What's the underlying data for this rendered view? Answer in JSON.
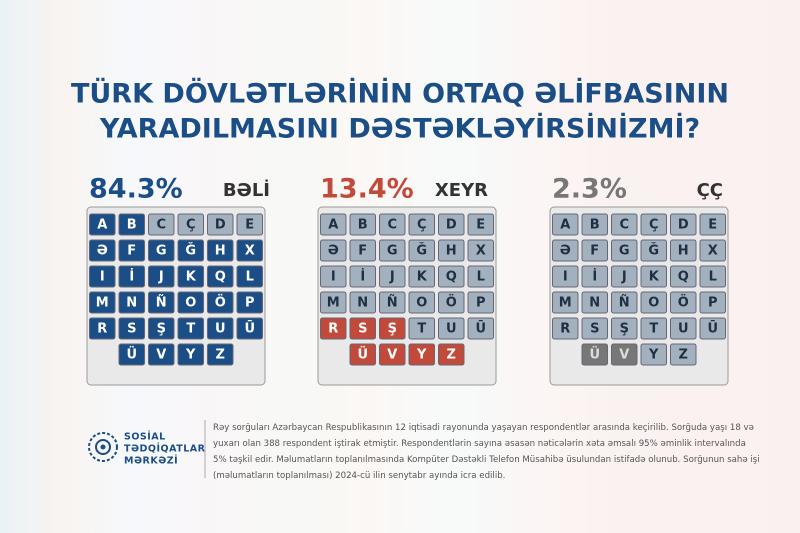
{
  "title": [
    "TÜRK DÖVLƏTLƏRİNİN ORTAQ ƏLİFBASININ",
    "YARADILMASINI DƏSTƏKLƏYİRSİNİZMİ?"
  ],
  "options": [
    {
      "percent": "84.3%",
      "answer": "BƏLİ"
    },
    {
      "percent": "13.4%",
      "answer": "XEYR"
    },
    {
      "percent": "2.3%",
      "answer": "ÇÇ"
    }
  ],
  "keys": [
    [
      "A",
      "B",
      "C",
      "Ç",
      "D",
      "E"
    ],
    [
      "Ə",
      "F",
      "G",
      "Ğ",
      "H",
      "X"
    ],
    [
      "I",
      "İ",
      "J",
      "K",
      "Q",
      "L"
    ],
    [
      "M",
      "N",
      "Ñ",
      "O",
      "Ö",
      "P"
    ],
    [
      "R",
      "S",
      "Ş",
      "T",
      "U",
      "Ū"
    ],
    [
      "Ü",
      "V",
      "Y",
      "Z"
    ]
  ],
  "logo": [
    "SOSİAL",
    "TƏDQİQATLAR",
    "MƏRKƏZİ"
  ],
  "footnote": [
    "Rəy sorğuları Azərbaycan Respublikasının 12 iqtisadi rayonunda yaşayan respondentlər arasında keçirilib. Sorğuda yaşı 18 və",
    "yuxarı olan 388 respondent iştirak etmiştir.  Respondentlərin sayına əsasən nəticələrin xəta əmsalı 95% əminlik intervalında",
    "5% təşkil edir. Məlumatların toplanılmasında Kompüter Dəstəkli Telefon Müsahibə üsulundan istifadə olunub. Sorğunun sahə işi",
    "(məlumatların toplanılması) 2024-cü ilin senytabr ayında icra edilib."
  ]
}
